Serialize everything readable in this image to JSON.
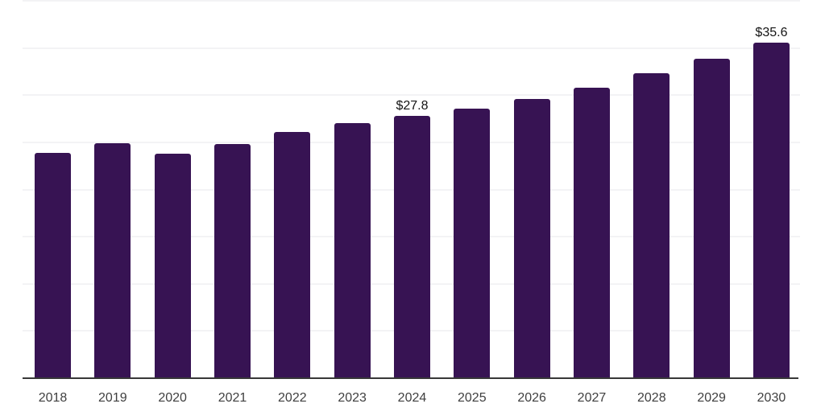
{
  "chart_data": {
    "type": "bar",
    "title": "",
    "xlabel": "",
    "ylabel": "",
    "categories": [
      "2018",
      "2019",
      "2020",
      "2021",
      "2022",
      "2023",
      "2024",
      "2025",
      "2026",
      "2027",
      "2028",
      "2029",
      "2030"
    ],
    "values": [
      23.9,
      24.9,
      23.8,
      24.8,
      26.1,
      27.0,
      27.8,
      28.6,
      29.6,
      30.8,
      32.3,
      33.9,
      35.6
    ],
    "data_labels": [
      "",
      "",
      "",
      "",
      "",
      "",
      "$27.8",
      "",
      "",
      "",
      "",
      "",
      "$35.6"
    ],
    "ylim": [
      0,
      40
    ],
    "gridline_step": 5,
    "grid": true,
    "legend": false,
    "y_tick_labels_shown": false,
    "colors": {
      "bar": "#371353",
      "axis": "#383838",
      "gridline": "#f3f3f5",
      "tick_label": "#3f3f3f",
      "data_label": "#141414",
      "background": "#ffffff"
    }
  }
}
